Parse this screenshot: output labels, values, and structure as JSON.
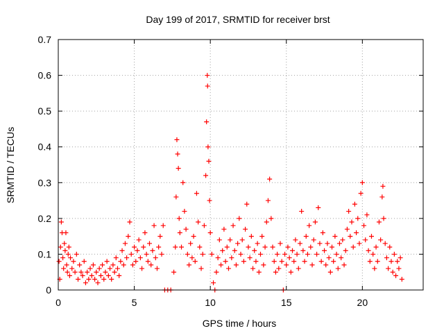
{
  "chart_data": {
    "type": "scatter",
    "title": "Day 199 of 2017, SRMTID for receiver brst",
    "xlabel": "GPS time / hours",
    "ylabel": "SRMTID / TECUs",
    "xlim": [
      0,
      24
    ],
    "ylim": [
      0,
      0.7
    ],
    "xticks": [
      0,
      5,
      10,
      15,
      20
    ],
    "xtick_labels": [
      "0",
      "5",
      "10",
      "15",
      "20"
    ],
    "yticks": [
      0,
      0.1,
      0.2,
      0.3,
      0.4,
      0.5,
      0.6,
      0.7
    ],
    "ytick_labels": [
      "0",
      "0.1",
      "0.2",
      "0.3",
      "0.4",
      "0.5",
      "0.6",
      "0.7"
    ],
    "grid": true,
    "marker": "+",
    "color": "#ff0000",
    "series": [
      {
        "name": "SRMTID",
        "points": [
          [
            0.05,
            0.08
          ],
          [
            0.1,
            0.03
          ],
          [
            0.15,
            0.12
          ],
          [
            0.2,
            0.19
          ],
          [
            0.25,
            0.16
          ],
          [
            0.3,
            0.09
          ],
          [
            0.35,
            0.06
          ],
          [
            0.4,
            0.13
          ],
          [
            0.45,
            0.11
          ],
          [
            0.5,
            0.16
          ],
          [
            0.55,
            0.07
          ],
          [
            0.6,
            0.05
          ],
          [
            0.65,
            0.1
          ],
          [
            0.7,
            0.12
          ],
          [
            0.75,
            0.04
          ],
          [
            0.8,
            0.09
          ],
          [
            0.9,
            0.06
          ],
          [
            1.0,
            0.08
          ],
          [
            1.1,
            0.05
          ],
          [
            1.2,
            0.1
          ],
          [
            1.3,
            0.03
          ],
          [
            1.4,
            0.07
          ],
          [
            1.5,
            0.05
          ],
          [
            1.6,
            0.04
          ],
          [
            1.7,
            0.08
          ],
          [
            1.8,
            0.02
          ],
          [
            1.9,
            0.05
          ],
          [
            2.0,
            0.03
          ],
          [
            2.1,
            0.06
          ],
          [
            2.2,
            0.04
          ],
          [
            2.3,
            0.07
          ],
          [
            2.4,
            0.03
          ],
          [
            2.5,
            0.05
          ],
          [
            2.6,
            0.02
          ],
          [
            2.7,
            0.06
          ],
          [
            2.8,
            0.04
          ],
          [
            2.9,
            0.07
          ],
          [
            3.0,
            0.03
          ],
          [
            3.1,
            0.05
          ],
          [
            3.2,
            0.08
          ],
          [
            3.3,
            0.04
          ],
          [
            3.4,
            0.06
          ],
          [
            3.5,
            0.03
          ],
          [
            3.6,
            0.07
          ],
          [
            3.7,
            0.05
          ],
          [
            3.8,
            0.09
          ],
          [
            3.9,
            0.06
          ],
          [
            4.0,
            0.04
          ],
          [
            4.1,
            0.08
          ],
          [
            4.2,
            0.11
          ],
          [
            4.3,
            0.07
          ],
          [
            4.4,
            0.13
          ],
          [
            4.5,
            0.09
          ],
          [
            4.6,
            0.15
          ],
          [
            4.7,
            0.19
          ],
          [
            4.8,
            0.1
          ],
          [
            4.9,
            0.07
          ],
          [
            5.0,
            0.12
          ],
          [
            5.1,
            0.08
          ],
          [
            5.2,
            0.11
          ],
          [
            5.3,
            0.14
          ],
          [
            5.4,
            0.09
          ],
          [
            5.5,
            0.06
          ],
          [
            5.6,
            0.12
          ],
          [
            5.7,
            0.16
          ],
          [
            5.8,
            0.1
          ],
          [
            5.9,
            0.08
          ],
          [
            6.0,
            0.13
          ],
          [
            6.1,
            0.07
          ],
          [
            6.2,
            0.11
          ],
          [
            6.3,
            0.18
          ],
          [
            6.4,
            0.09
          ],
          [
            6.5,
            0.06
          ],
          [
            6.6,
            0.12
          ],
          [
            6.7,
            0.15
          ],
          [
            6.8,
            0.1
          ],
          [
            6.9,
            0.18
          ],
          [
            7.0,
            0.0
          ],
          [
            7.2,
            0.0
          ],
          [
            7.4,
            0.0
          ],
          [
            7.6,
            0.05
          ],
          [
            7.7,
            0.12
          ],
          [
            7.75,
            0.26
          ],
          [
            7.8,
            0.42
          ],
          [
            7.85,
            0.38
          ],
          [
            7.9,
            0.34
          ],
          [
            7.95,
            0.2
          ],
          [
            8.0,
            0.16
          ],
          [
            8.1,
            0.12
          ],
          [
            8.2,
            0.3
          ],
          [
            8.3,
            0.22
          ],
          [
            8.4,
            0.17
          ],
          [
            8.5,
            0.1
          ],
          [
            8.6,
            0.07
          ],
          [
            8.7,
            0.13
          ],
          [
            8.8,
            0.09
          ],
          [
            8.9,
            0.15
          ],
          [
            9.0,
            0.08
          ],
          [
            9.1,
            0.27
          ],
          [
            9.2,
            0.19
          ],
          [
            9.3,
            0.12
          ],
          [
            9.4,
            0.06
          ],
          [
            9.5,
            0.1
          ],
          [
            9.6,
            0.18
          ],
          [
            9.7,
            0.32
          ],
          [
            9.75,
            0.47
          ],
          [
            9.8,
            0.6
          ],
          [
            9.82,
            0.57
          ],
          [
            9.85,
            0.4
          ],
          [
            9.9,
            0.36
          ],
          [
            9.95,
            0.25
          ],
          [
            10.0,
            0.16
          ],
          [
            10.1,
            0.1
          ],
          [
            10.2,
            0.02
          ],
          [
            10.3,
            0.0
          ],
          [
            10.4,
            0.05
          ],
          [
            10.5,
            0.09
          ],
          [
            10.6,
            0.14
          ],
          [
            10.7,
            0.07
          ],
          [
            10.8,
            0.11
          ],
          [
            10.9,
            0.17
          ],
          [
            11.0,
            0.08
          ],
          [
            11.1,
            0.12
          ],
          [
            11.2,
            0.06
          ],
          [
            11.3,
            0.14
          ],
          [
            11.4,
            0.09
          ],
          [
            11.5,
            0.18
          ],
          [
            11.6,
            0.11
          ],
          [
            11.7,
            0.07
          ],
          [
            11.8,
            0.13
          ],
          [
            11.9,
            0.2
          ],
          [
            12.0,
            0.1
          ],
          [
            12.1,
            0.14
          ],
          [
            12.2,
            0.08
          ],
          [
            12.3,
            0.17
          ],
          [
            12.4,
            0.24
          ],
          [
            12.5,
            0.12
          ],
          [
            12.6,
            0.09
          ],
          [
            12.7,
            0.15
          ],
          [
            12.8,
            0.06
          ],
          [
            12.9,
            0.11
          ],
          [
            13.0,
            0.08
          ],
          [
            13.1,
            0.13
          ],
          [
            13.2,
            0.05
          ],
          [
            13.3,
            0.1
          ],
          [
            13.4,
            0.15
          ],
          [
            13.5,
            0.07
          ],
          [
            13.6,
            0.12
          ],
          [
            13.7,
            0.19
          ],
          [
            13.8,
            0.25
          ],
          [
            13.9,
            0.31
          ],
          [
            14.0,
            0.2
          ],
          [
            14.1,
            0.12
          ],
          [
            14.2,
            0.08
          ],
          [
            14.3,
            0.05
          ],
          [
            14.4,
            0.1
          ],
          [
            14.5,
            0.06
          ],
          [
            14.6,
            0.13
          ],
          [
            14.7,
            0.08
          ],
          [
            14.8,
            0.0
          ],
          [
            14.9,
            0.1
          ],
          [
            15.0,
            0.07
          ],
          [
            15.1,
            0.12
          ],
          [
            15.2,
            0.09
          ],
          [
            15.3,
            0.05
          ],
          [
            15.4,
            0.11
          ],
          [
            15.5,
            0.08
          ],
          [
            15.6,
            0.14
          ],
          [
            15.7,
            0.1
          ],
          [
            15.8,
            0.06
          ],
          [
            15.9,
            0.13
          ],
          [
            16.0,
            0.22
          ],
          [
            16.1,
            0.11
          ],
          [
            16.2,
            0.08
          ],
          [
            16.3,
            0.15
          ],
          [
            16.4,
            0.1
          ],
          [
            16.5,
            0.18
          ],
          [
            16.6,
            0.12
          ],
          [
            16.7,
            0.07
          ],
          [
            16.8,
            0.14
          ],
          [
            16.9,
            0.19
          ],
          [
            17.0,
            0.1
          ],
          [
            17.1,
            0.23
          ],
          [
            17.2,
            0.13
          ],
          [
            17.3,
            0.08
          ],
          [
            17.4,
            0.16
          ],
          [
            17.5,
            0.11
          ],
          [
            17.6,
            0.07
          ],
          [
            17.7,
            0.13
          ],
          [
            17.8,
            0.09
          ],
          [
            17.9,
            0.05
          ],
          [
            18.0,
            0.12
          ],
          [
            18.1,
            0.08
          ],
          [
            18.2,
            0.15
          ],
          [
            18.3,
            0.1
          ],
          [
            18.4,
            0.06
          ],
          [
            18.5,
            0.13
          ],
          [
            18.6,
            0.09
          ],
          [
            18.7,
            0.14
          ],
          [
            18.8,
            0.07
          ],
          [
            18.9,
            0.11
          ],
          [
            19.0,
            0.17
          ],
          [
            19.1,
            0.22
          ],
          [
            19.2,
            0.15
          ],
          [
            19.3,
            0.19
          ],
          [
            19.4,
            0.12
          ],
          [
            19.5,
            0.24
          ],
          [
            19.6,
            0.16
          ],
          [
            19.7,
            0.2
          ],
          [
            19.8,
            0.13
          ],
          [
            19.9,
            0.27
          ],
          [
            20.0,
            0.3
          ],
          [
            20.1,
            0.18
          ],
          [
            20.2,
            0.14
          ],
          [
            20.3,
            0.21
          ],
          [
            20.4,
            0.11
          ],
          [
            20.5,
            0.08
          ],
          [
            20.6,
            0.15
          ],
          [
            20.7,
            0.1
          ],
          [
            20.8,
            0.06
          ],
          [
            20.9,
            0.12
          ],
          [
            21.0,
            0.08
          ],
          [
            21.1,
            0.19
          ],
          [
            21.2,
            0.14
          ],
          [
            21.3,
            0.26
          ],
          [
            21.35,
            0.29
          ],
          [
            21.4,
            0.2
          ],
          [
            21.5,
            0.13
          ],
          [
            21.6,
            0.09
          ],
          [
            21.7,
            0.06
          ],
          [
            21.8,
            0.12
          ],
          [
            21.9,
            0.08
          ],
          [
            22.0,
            0.05
          ],
          [
            22.1,
            0.1
          ],
          [
            22.2,
            0.04
          ],
          [
            22.3,
            0.08
          ],
          [
            22.4,
            0.06
          ],
          [
            22.5,
            0.09
          ],
          [
            22.6,
            0.03
          ]
        ]
      }
    ]
  }
}
